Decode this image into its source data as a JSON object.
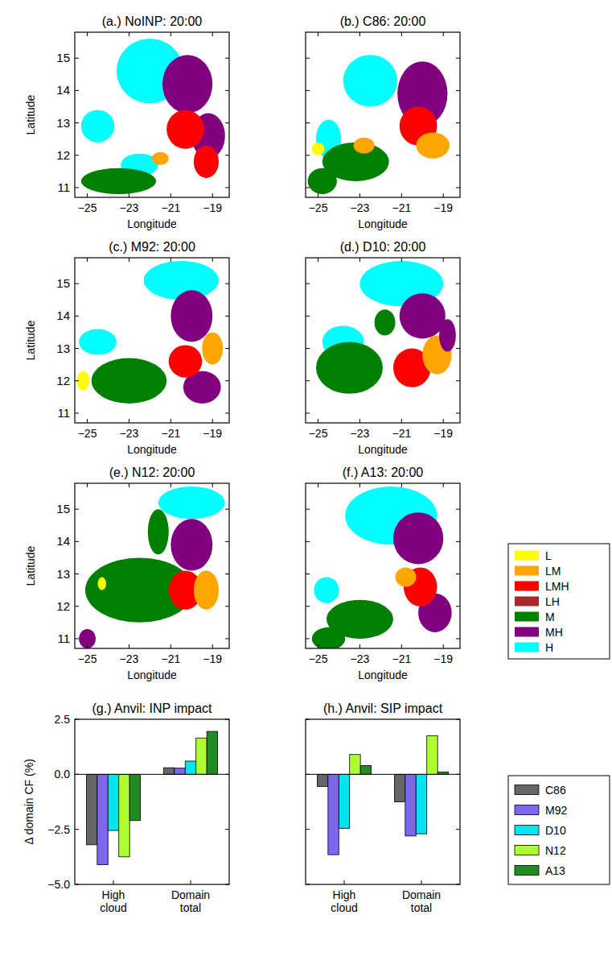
{
  "chart_data": [
    {
      "type": "map",
      "title": "(a.) NoINP: 20:00",
      "x_label": "Longitude",
      "y_label": "Latitude",
      "xlim": [
        -25.6,
        -18.2
      ],
      "ylim": [
        10.7,
        15.8
      ],
      "xticks": [
        {
          "value": -25,
          "label": "−25"
        },
        {
          "value": -23,
          "label": "−23"
        },
        {
          "value": -21,
          "label": "−21"
        },
        {
          "value": -19,
          "label": "−19"
        }
      ],
      "yticks": [
        11,
        12,
        13,
        14,
        15
      ],
      "cloud_patches": [
        {
          "category": "H",
          "lon": -22,
          "lat": 14.6,
          "r_lon": 1.6,
          "r_lat": 1.0
        },
        {
          "category": "H",
          "lon": -24.5,
          "lat": 12.9,
          "r_lon": 0.8,
          "r_lat": 0.5
        },
        {
          "category": "H",
          "lon": -22.5,
          "lat": 11.7,
          "r_lon": 0.9,
          "r_lat": 0.35
        },
        {
          "category": "M",
          "lon": -23.5,
          "lat": 11.2,
          "r_lon": 1.8,
          "r_lat": 0.4
        },
        {
          "category": "MH",
          "lon": -20.2,
          "lat": 14.2,
          "r_lon": 1.2,
          "r_lat": 0.9
        },
        {
          "category": "MH",
          "lon": -19.2,
          "lat": 12.6,
          "r_lon": 0.8,
          "r_lat": 0.7
        },
        {
          "category": "LMH",
          "lon": -20.3,
          "lat": 12.8,
          "r_lon": 0.9,
          "r_lat": 0.6
        },
        {
          "category": "LMH",
          "lon": -19.3,
          "lat": 11.8,
          "r_lon": 0.6,
          "r_lat": 0.5
        },
        {
          "category": "LM",
          "lon": -21.5,
          "lat": 11.9,
          "r_lon": 0.4,
          "r_lat": 0.2
        }
      ]
    },
    {
      "type": "map",
      "title": "(b.) C86: 20:00",
      "x_label": "Longitude",
      "tick_labels": "x",
      "xlim": [
        -25.6,
        -18.2
      ],
      "ylim": [
        10.7,
        15.8
      ],
      "xticks": [
        {
          "value": -25,
          "label": "−25"
        },
        {
          "value": -23,
          "label": "−23"
        },
        {
          "value": -21,
          "label": "−21"
        },
        {
          "value": -19,
          "label": "−19"
        }
      ],
      "yticks": [
        11,
        12,
        13,
        14,
        15
      ],
      "cloud_patches": [
        {
          "category": "H",
          "lon": -22.5,
          "lat": 14.3,
          "r_lon": 1.3,
          "r_lat": 0.8
        },
        {
          "category": "H",
          "lon": -24.5,
          "lat": 12.5,
          "r_lon": 0.6,
          "r_lat": 0.6
        },
        {
          "category": "M",
          "lon": -23.2,
          "lat": 11.8,
          "r_lon": 1.6,
          "r_lat": 0.6
        },
        {
          "category": "M",
          "lon": -24.8,
          "lat": 11.2,
          "r_lon": 0.7,
          "r_lat": 0.4
        },
        {
          "category": "MH",
          "lon": -20,
          "lat": 13.9,
          "r_lon": 1.2,
          "r_lat": 1.0
        },
        {
          "category": "LMH",
          "lon": -20.2,
          "lat": 12.9,
          "r_lon": 0.9,
          "r_lat": 0.6
        },
        {
          "category": "LM",
          "lon": -19.5,
          "lat": 12.3,
          "r_lon": 0.8,
          "r_lat": 0.4
        },
        {
          "category": "LM",
          "lon": -22.8,
          "lat": 12.3,
          "r_lon": 0.5,
          "r_lat": 0.25
        },
        {
          "category": "L",
          "lon": -25,
          "lat": 12.2,
          "r_lon": 0.3,
          "r_lat": 0.2
        }
      ]
    },
    {
      "type": "map",
      "title": "(c.) M92: 20:00",
      "x_label": "Longitude",
      "y_label": "Latitude",
      "xlim": [
        -25.6,
        -18.2
      ],
      "ylim": [
        10.7,
        15.8
      ],
      "xticks": [
        {
          "value": -25,
          "label": "−25"
        },
        {
          "value": -23,
          "label": "−23"
        },
        {
          "value": -21,
          "label": "−21"
        },
        {
          "value": -19,
          "label": "−19"
        }
      ],
      "yticks": [
        11,
        12,
        13,
        14,
        15
      ],
      "cloud_patches": [
        {
          "category": "H",
          "lon": -20.5,
          "lat": 15.1,
          "r_lon": 1.8,
          "r_lat": 0.6
        },
        {
          "category": "H",
          "lon": -24.5,
          "lat": 13.2,
          "r_lon": 0.9,
          "r_lat": 0.4
        },
        {
          "category": "M",
          "lon": -23,
          "lat": 12.0,
          "r_lon": 1.8,
          "r_lat": 0.7
        },
        {
          "category": "MH",
          "lon": -20,
          "lat": 14.0,
          "r_lon": 1.0,
          "r_lat": 0.8
        },
        {
          "category": "MH",
          "lon": -19.5,
          "lat": 11.8,
          "r_lon": 0.9,
          "r_lat": 0.5
        },
        {
          "category": "LMH",
          "lon": -20.3,
          "lat": 12.6,
          "r_lon": 0.8,
          "r_lat": 0.5
        },
        {
          "category": "LM",
          "lon": -19,
          "lat": 13,
          "r_lon": 0.5,
          "r_lat": 0.5
        },
        {
          "category": "L",
          "lon": -25.2,
          "lat": 12,
          "r_lon": 0.3,
          "r_lat": 0.3
        }
      ]
    },
    {
      "type": "map",
      "title": "(d.) D10: 20:00",
      "x_label": "Longitude",
      "tick_labels": "x",
      "xlim": [
        -25.6,
        -18.2
      ],
      "ylim": [
        10.7,
        15.8
      ],
      "xticks": [
        {
          "value": -25,
          "label": "−25"
        },
        {
          "value": -23,
          "label": "−23"
        },
        {
          "value": -21,
          "label": "−21"
        },
        {
          "value": -19,
          "label": "−19"
        }
      ],
      "yticks": [
        11,
        12,
        13,
        14,
        15
      ],
      "cloud_patches": [
        {
          "category": "H",
          "lon": -21,
          "lat": 15.0,
          "r_lon": 2.0,
          "r_lat": 0.7
        },
        {
          "category": "H",
          "lon": -23.8,
          "lat": 13.2,
          "r_lon": 1.0,
          "r_lat": 0.5
        },
        {
          "category": "M",
          "lon": -23.5,
          "lat": 12.4,
          "r_lon": 1.6,
          "r_lat": 0.8
        },
        {
          "category": "M",
          "lon": -21.8,
          "lat": 13.8,
          "r_lon": 0.5,
          "r_lat": 0.4
        },
        {
          "category": "MH",
          "lon": -20,
          "lat": 14.0,
          "r_lon": 1.1,
          "r_lat": 0.7
        },
        {
          "category": "LMH",
          "lon": -20.5,
          "lat": 12.4,
          "r_lon": 0.9,
          "r_lat": 0.6
        },
        {
          "category": "LM",
          "lon": -19.3,
          "lat": 12.8,
          "r_lon": 0.7,
          "r_lat": 0.6
        },
        {
          "category": "MH",
          "lon": -18.8,
          "lat": 13.4,
          "r_lon": 0.4,
          "r_lat": 0.5
        }
      ]
    },
    {
      "type": "map",
      "title": "(e.) N12: 20:00",
      "x_label": "Longitude",
      "y_label": "Latitude",
      "xlim": [
        -25.6,
        -18.2
      ],
      "ylim": [
        10.7,
        15.8
      ],
      "xticks": [
        {
          "value": -25,
          "label": "−25"
        },
        {
          "value": -23,
          "label": "−23"
        },
        {
          "value": -21,
          "label": "−21"
        },
        {
          "value": -19,
          "label": "−19"
        }
      ],
      "yticks": [
        11,
        12,
        13,
        14,
        15
      ],
      "cloud_patches": [
        {
          "category": "H",
          "lon": -20,
          "lat": 15.2,
          "r_lon": 1.6,
          "r_lat": 0.5
        },
        {
          "category": "M",
          "lon": -22.5,
          "lat": 12.5,
          "r_lon": 2.6,
          "r_lat": 1.0
        },
        {
          "category": "M",
          "lon": -21.6,
          "lat": 14.3,
          "r_lon": 0.5,
          "r_lat": 0.7
        },
        {
          "category": "MH",
          "lon": -20,
          "lat": 13.9,
          "r_lon": 1.0,
          "r_lat": 0.8
        },
        {
          "category": "LMH",
          "lon": -20.3,
          "lat": 12.5,
          "r_lon": 0.8,
          "r_lat": 0.6
        },
        {
          "category": "LM",
          "lon": -19.3,
          "lat": 12.5,
          "r_lon": 0.6,
          "r_lat": 0.6
        },
        {
          "category": "L",
          "lon": -24.3,
          "lat": 12.7,
          "r_lon": 0.2,
          "r_lat": 0.2
        },
        {
          "category": "MH",
          "lon": -25,
          "lat": 11,
          "r_lon": 0.4,
          "r_lat": 0.3
        }
      ]
    },
    {
      "type": "map",
      "title": "(f.) A13: 20:00",
      "x_label": "Longitude",
      "tick_labels": "x",
      "legend": "right",
      "xlim": [
        -25.6,
        -18.2
      ],
      "ylim": [
        10.7,
        15.8
      ],
      "xticks": [
        {
          "value": -25,
          "label": "−25"
        },
        {
          "value": -23,
          "label": "−23"
        },
        {
          "value": -21,
          "label": "−21"
        },
        {
          "value": -19,
          "label": "−19"
        }
      ],
      "yticks": [
        11,
        12,
        13,
        14,
        15
      ],
      "series": [
        {
          "name": "L",
          "color": "#ffff00"
        },
        {
          "name": "LM",
          "color": "#ffa500"
        },
        {
          "name": "LMH",
          "color": "#ff0000"
        },
        {
          "name": "LH",
          "color": "#a52a2a"
        },
        {
          "name": "M",
          "color": "#008000"
        },
        {
          "name": "MH",
          "color": "#800080"
        },
        {
          "name": "H",
          "color": "#00ffff"
        }
      ],
      "cloud_patches": [
        {
          "category": "H",
          "lon": -21.5,
          "lat": 14.8,
          "r_lon": 2.2,
          "r_lat": 0.9
        },
        {
          "category": "H",
          "lon": -24.6,
          "lat": 12.5,
          "r_lon": 0.6,
          "r_lat": 0.4
        },
        {
          "category": "M",
          "lon": -23,
          "lat": 11.6,
          "r_lon": 1.6,
          "r_lat": 0.6
        },
        {
          "category": "MH",
          "lon": -20.2,
          "lat": 14.1,
          "r_lon": 1.2,
          "r_lat": 0.8
        },
        {
          "category": "MH",
          "lon": -19.4,
          "lat": 11.8,
          "r_lon": 0.8,
          "r_lat": 0.6
        },
        {
          "category": "LMH",
          "lon": -20.1,
          "lat": 12.6,
          "r_lon": 0.8,
          "r_lat": 0.6
        },
        {
          "category": "LM",
          "lon": -20.8,
          "lat": 12.9,
          "r_lon": 0.5,
          "r_lat": 0.3
        },
        {
          "category": "M",
          "lon": -24.5,
          "lat": 11.0,
          "r_lon": 0.8,
          "r_lat": 0.35
        }
      ]
    },
    {
      "type": "bar",
      "title": "(g.) Anvil: INP impact",
      "y_label": "Δ domain CF (%)",
      "categories": [
        "High cloud",
        "Domain total"
      ],
      "ylim": [
        -5,
        2.5
      ],
      "yticks": [
        {
          "value": -5,
          "label": "−5.0"
        },
        {
          "value": -2.5,
          "label": "−2.5"
        },
        {
          "value": 0,
          "label": "0.0"
        },
        {
          "value": 2.5,
          "label": "2.5"
        }
      ],
      "series": [
        {
          "name": "C86",
          "color": "#666666",
          "values": [
            -3.2,
            0.3
          ]
        },
        {
          "name": "M92",
          "color": "#7b68ee",
          "values": [
            -4.1,
            0.28
          ]
        },
        {
          "name": "D10",
          "color": "#00e5ee",
          "values": [
            -2.55,
            0.6
          ]
        },
        {
          "name": "N12",
          "color": "#adff2f",
          "values": [
            -3.75,
            1.65
          ]
        },
        {
          "name": "A13",
          "color": "#228b22",
          "values": [
            -2.1,
            1.95
          ]
        }
      ]
    },
    {
      "type": "bar",
      "title": "(h.) Anvil: SIP impact",
      "tick_labels": "x",
      "legend": "right",
      "categories": [
        "High cloud",
        "Domain total"
      ],
      "ylim": [
        -5,
        2.5
      ],
      "yticks": [
        {
          "value": -5,
          "label": "−5.0"
        },
        {
          "value": -2.5,
          "label": "−2.5"
        },
        {
          "value": 0,
          "label": "0.0"
        },
        {
          "value": 2.5,
          "label": "2.5"
        }
      ],
      "series": [
        {
          "name": "C86",
          "color": "#666666",
          "values": [
            -0.55,
            -1.25
          ]
        },
        {
          "name": "M92",
          "color": "#7b68ee",
          "values": [
            -3.65,
            -2.8
          ]
        },
        {
          "name": "D10",
          "color": "#00e5ee",
          "values": [
            -2.45,
            -2.7
          ]
        },
        {
          "name": "N12",
          "color": "#adff2f",
          "values": [
            0.9,
            1.75
          ]
        },
        {
          "name": "A13",
          "color": "#228b22",
          "values": [
            0.4,
            0.1
          ]
        }
      ]
    }
  ]
}
